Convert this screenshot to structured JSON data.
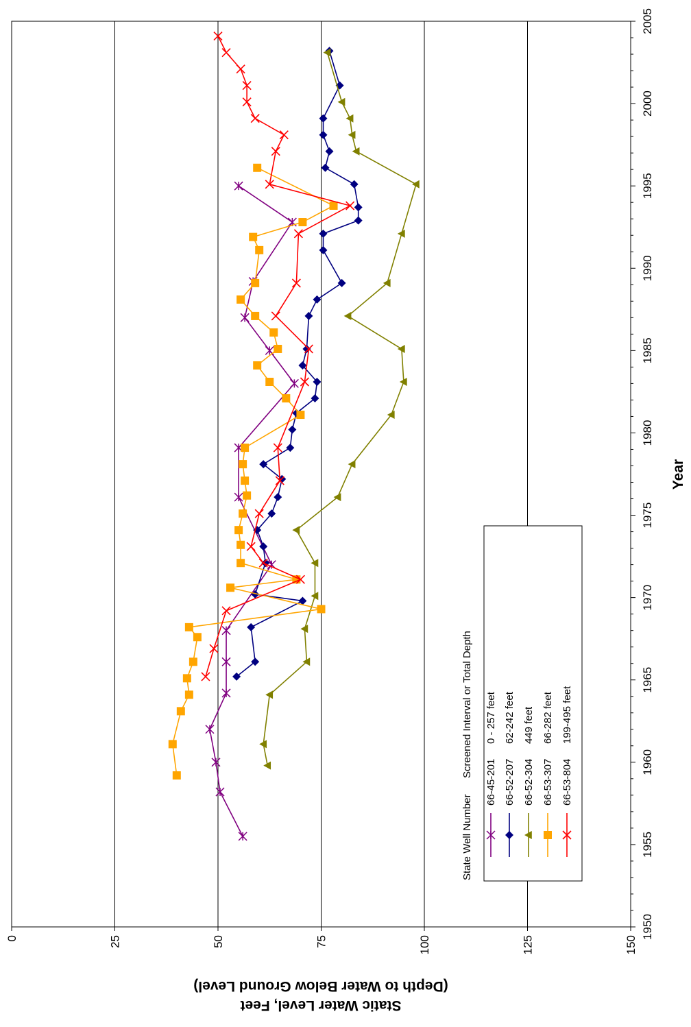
{
  "chart_data": {
    "type": "line",
    "title": "",
    "xlabel": "Year",
    "ylabel_line1": "Static Water Level, Feet",
    "ylabel_line2": "(Depth to Water Below Ground Level)",
    "xlim": [
      1950,
      2005
    ],
    "ylim": [
      0,
      150
    ],
    "x_ticks": [
      "1950",
      "1955",
      "1960",
      "1965",
      "1970",
      "1975",
      "1980",
      "1985",
      "1990",
      "1995",
      "2000",
      "2005"
    ],
    "y_ticks": [
      "0",
      "25",
      "50",
      "75",
      "100",
      "125",
      "150"
    ],
    "grid": true,
    "legend": {
      "header_col1": "State Well Number",
      "header_col2": "Screened Interval or Total Depth",
      "placement": "lower-left"
    },
    "series": [
      {
        "name": "66-45-201",
        "depth": "0 - 257 feet",
        "color": "#800080",
        "marker": "asterisk",
        "points": [
          [
            1955.5,
            56
          ],
          [
            1958.2,
            50.5
          ],
          [
            1960,
            49.5
          ],
          [
            1962,
            48
          ],
          [
            1964.2,
            52
          ],
          [
            1966.1,
            52
          ],
          [
            1968,
            52
          ],
          [
            1972,
            63
          ],
          [
            1976.1,
            55
          ],
          [
            1979.1,
            55
          ],
          [
            1983,
            68.5
          ],
          [
            1985,
            62.5
          ],
          [
            1987,
            56.5
          ],
          [
            1989.2,
            58.5
          ],
          [
            1992.8,
            68
          ],
          [
            1995,
            55
          ]
        ]
      },
      {
        "name": "66-52-207",
        "depth": "62-242 feet",
        "color": "#000080",
        "marker": "diamond",
        "points": [
          [
            1965.2,
            54.5
          ],
          [
            1966.1,
            59
          ],
          [
            1968.2,
            58
          ],
          [
            1969.8,
            70.5
          ],
          [
            1970.2,
            59
          ],
          [
            1972.1,
            61.5
          ],
          [
            1973.1,
            61
          ],
          [
            1974.1,
            59.5
          ],
          [
            1975.1,
            63
          ],
          [
            1976.1,
            64.5
          ],
          [
            1977.2,
            65.5
          ],
          [
            1978.1,
            61
          ],
          [
            1979.1,
            67.5
          ],
          [
            1980.2,
            68
          ],
          [
            1981.2,
            69
          ],
          [
            1982.1,
            73.5
          ],
          [
            1983.1,
            74
          ],
          [
            1984.1,
            70.5
          ],
          [
            1985.1,
            71.5
          ],
          [
            1987.1,
            72
          ],
          [
            1988.1,
            74
          ],
          [
            1989.1,
            80
          ],
          [
            1991.1,
            75.5
          ],
          [
            1992.1,
            75.5
          ],
          [
            1992.9,
            84
          ],
          [
            1993.7,
            84
          ],
          [
            1995.1,
            83
          ],
          [
            1996.1,
            76
          ],
          [
            1997.1,
            77
          ],
          [
            1998.1,
            75.5
          ],
          [
            1999.1,
            75.5
          ],
          [
            2001.1,
            79.5
          ],
          [
            2003.2,
            77
          ]
        ]
      },
      {
        "name": "66-52-304",
        "depth": "449 feet",
        "color": "#808000",
        "marker": "triangle",
        "points": [
          [
            1959.8,
            62
          ],
          [
            1961.1,
            61
          ],
          [
            1964.1,
            62.5
          ],
          [
            1966.1,
            71.5
          ],
          [
            1968.1,
            71
          ],
          [
            1970.1,
            73.5
          ],
          [
            1972.1,
            73.5
          ],
          [
            1974.1,
            69
          ],
          [
            1976.1,
            79
          ],
          [
            1978.1,
            82.5
          ],
          [
            1981.1,
            92
          ],
          [
            1983.1,
            95
          ],
          [
            1985.1,
            94.5
          ],
          [
            1987.1,
            81.5
          ],
          [
            1989.1,
            91
          ],
          [
            1992.1,
            94.5
          ],
          [
            1995.1,
            98
          ],
          [
            1997.1,
            83.5
          ],
          [
            1998.1,
            82.5
          ],
          [
            1999.1,
            82
          ],
          [
            2000.1,
            80
          ],
          [
            2003.1,
            76.5
          ]
        ]
      },
      {
        "name": "66-53-307",
        "depth": "66-282 feet",
        "color": "#FFA500",
        "marker": "square",
        "points": [
          [
            1959.2,
            40
          ],
          [
            1961.1,
            39
          ],
          [
            1963.1,
            41
          ],
          [
            1964.1,
            43
          ],
          [
            1965.1,
            42.5
          ],
          [
            1966.1,
            44
          ],
          [
            1967.6,
            45
          ],
          [
            1968.2,
            43
          ],
          [
            1969.3,
            75
          ],
          [
            1970.6,
            53
          ],
          [
            1971.1,
            69
          ],
          [
            1972.1,
            55.5
          ],
          [
            1973.2,
            55.5
          ],
          [
            1974.1,
            55
          ],
          [
            1975.1,
            56
          ],
          [
            1976.2,
            57
          ],
          [
            1977.1,
            56.5
          ],
          [
            1978.1,
            56
          ],
          [
            1979.1,
            56.5
          ],
          [
            1981.1,
            70
          ],
          [
            1982.1,
            66.5
          ],
          [
            1983.1,
            62.5
          ],
          [
            1984.1,
            59.5
          ],
          [
            1985.1,
            64.5
          ],
          [
            1986.1,
            63.5
          ],
          [
            1987.1,
            59
          ],
          [
            1988.1,
            55.5
          ],
          [
            1989.1,
            59
          ],
          [
            1991.1,
            60
          ],
          [
            1991.9,
            58.5
          ],
          [
            1992.8,
            70.5
          ],
          [
            1993.8,
            78
          ],
          [
            1996.1,
            59.5
          ]
        ]
      },
      {
        "name": "66-53-804",
        "depth": "199-495 feet",
        "color": "#FF0000",
        "marker": "x",
        "points": [
          [
            1965.2,
            47
          ],
          [
            1966.9,
            49
          ],
          [
            1969.2,
            52
          ],
          [
            1971.1,
            70
          ],
          [
            1972.1,
            61
          ],
          [
            1973.1,
            58
          ],
          [
            1975.1,
            60
          ],
          [
            1977.1,
            65
          ],
          [
            1979.1,
            64.5
          ],
          [
            1983.1,
            71
          ],
          [
            1985.1,
            72
          ],
          [
            1987.1,
            64
          ],
          [
            1989.1,
            69
          ],
          [
            1992.1,
            69.5
          ],
          [
            1993.8,
            82
          ],
          [
            1995.1,
            62.5
          ],
          [
            1997.1,
            64
          ],
          [
            1998.1,
            66
          ],
          [
            1999.1,
            59
          ],
          [
            2000.1,
            57
          ],
          [
            2001.1,
            57
          ],
          [
            2002.1,
            55.5
          ],
          [
            2003.1,
            52
          ],
          [
            2004.1,
            50
          ]
        ]
      }
    ]
  }
}
